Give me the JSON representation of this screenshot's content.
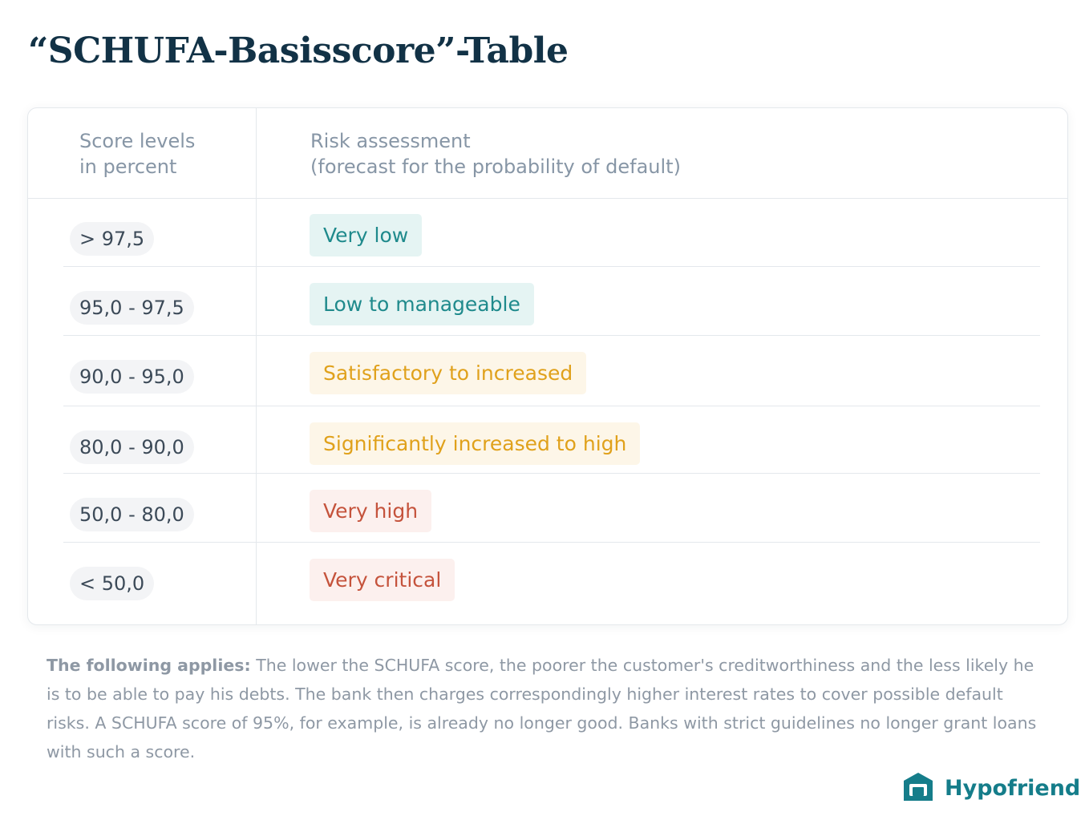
{
  "title": "“SCHUFA-Basisscore”-Table",
  "table": {
    "headers": {
      "score_line1": "Score levels",
      "score_line2": "in percent",
      "risk_line1": "Risk assessment",
      "risk_line2": "(forecast for the probability of default)"
    },
    "rows": [
      {
        "score": "> 97,5",
        "risk": "Very low",
        "risk_color": "#1f8a8c",
        "risk_bg": "#e5f4f3"
      },
      {
        "score": "95,0 - 97,5",
        "risk": "Low to manageable",
        "risk_color": "#1f8a8c",
        "risk_bg": "#e5f4f3"
      },
      {
        "score": "90,0 - 95,0",
        "risk": "Satisfactory to increased",
        "risk_color": "#e0a11b",
        "risk_bg": "#fdf6e8"
      },
      {
        "score": "80,0 - 90,0",
        "risk": "Significantly increased to high",
        "risk_color": "#e0a11b",
        "risk_bg": "#fdf6e8"
      },
      {
        "score": "50,0 - 80,0",
        "risk": "Very high",
        "risk_color": "#c5533c",
        "risk_bg": "#fcf0ee"
      },
      {
        "score": "< 50,0",
        "risk": "Very critical",
        "risk_color": "#c5533c",
        "risk_bg": "#fcf0ee"
      }
    ]
  },
  "footnote": {
    "lead": "The following applies:",
    "text": " The lower the SCHUFA score, the poorer the customer's creditworthiness and the less likely he is to be able to pay his debts. The bank then charges correspondingly higher interest rates to cover possible default risks. A SCHUFA score of 95%, for example, is already no longer good. Banks with strict guidelines no longer grant loans with such a score."
  },
  "brand": {
    "name": "Hypofriend",
    "icon": "house-icon",
    "color": "#157d8a"
  }
}
